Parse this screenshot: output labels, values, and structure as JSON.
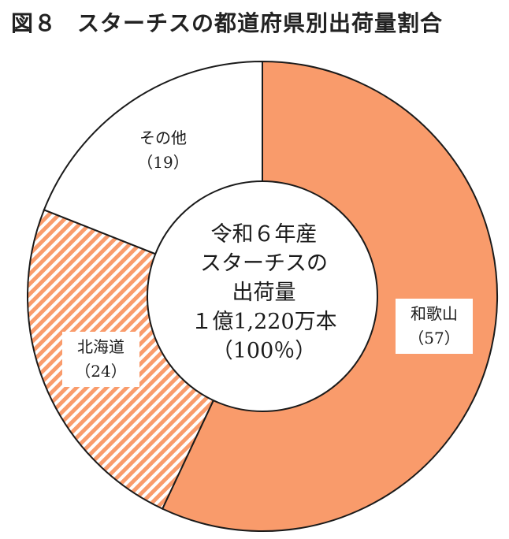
{
  "title_number": "図８",
  "title_text": "スターチスの都道府県別出荷量割合",
  "center_text": {
    "line1": "令和６年産",
    "line2": "スターチスの",
    "line3": "出荷量",
    "line4": "１億1,220万本",
    "line5": "（100％）"
  },
  "chart_data": {
    "type": "pie",
    "variant": "donut",
    "title": "図８　スターチスの都道府県別出荷量割合",
    "unit": "%",
    "slices": [
      {
        "label": "和歌山",
        "value": 57,
        "value_label": "（57）",
        "color": "#F99B6B",
        "fill": "solid"
      },
      {
        "label": "北海道",
        "value": 24,
        "value_label": "（24）",
        "color": "#F99B6B",
        "fill": "diagonal-hatch"
      },
      {
        "label": "その他",
        "value": 19,
        "value_label": "（19）",
        "color": "#FFFFFF",
        "fill": "solid"
      }
    ],
    "start": "12 o'clock",
    "direction": "clockwise",
    "edge_color": "#1A1A1A"
  }
}
